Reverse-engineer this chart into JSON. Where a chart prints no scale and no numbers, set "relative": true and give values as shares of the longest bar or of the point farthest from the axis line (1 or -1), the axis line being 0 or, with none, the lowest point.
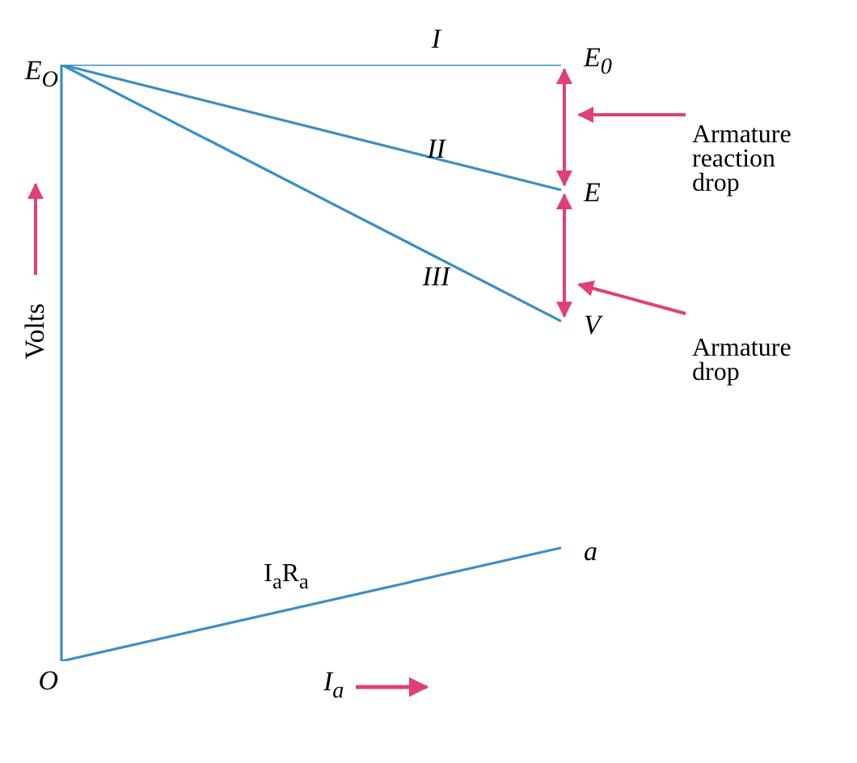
{
  "chart_data": {
    "type": "line",
    "relative": true,
    "categories": [
      null,
      null
    ],
    "xlabel": "I$_{a}$",
    "ylabel": "Volts",
    "marker": "none",
    "series": [
      {
        "name": "I",
        "color": "#3a8fc4",
        "values": [
          1,
          1
        ]
      },
      {
        "name": "II",
        "color": "#3a8fc4",
        "values": [
          1,
          0.79
        ]
      },
      {
        "name": "III",
        "color": "#3a8fc4",
        "values": [
          1,
          0.57
        ]
      },
      {
        "name": "I$_{a}$R$_{a}$",
        "color": "#3a8fc4",
        "values": [
          0,
          0.19
        ]
      }
    ],
    "annotations": [
      "E$_{O}$",
      "E$_{0}$",
      "E",
      "V",
      "a",
      "O",
      "Armature reaction drop",
      "Armature drop"
    ]
  }
}
